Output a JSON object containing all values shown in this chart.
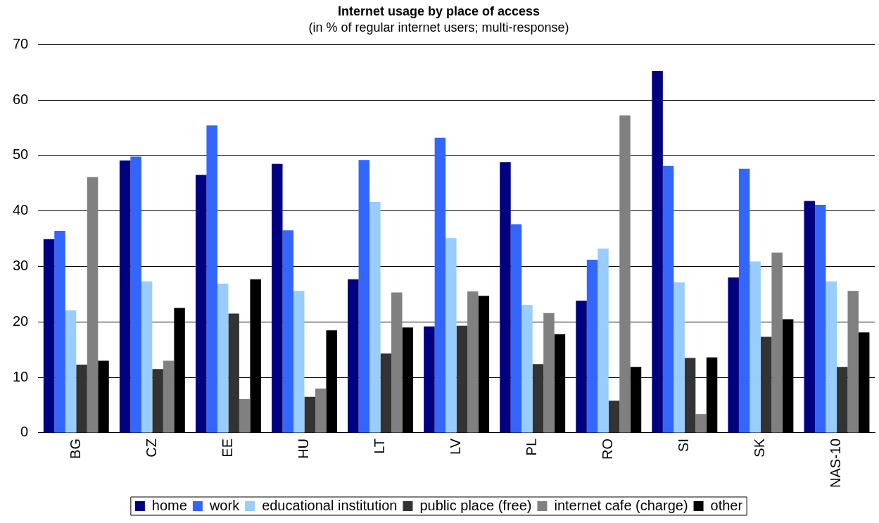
{
  "chart_data": {
    "type": "bar",
    "title": "Internet usage by place of access",
    "subtitle": "(in % of regular internet users; multi-response)",
    "categories": [
      "BG",
      "CZ",
      "EE",
      "HU",
      "LT",
      "LV",
      "PL",
      "RO",
      "SI",
      "SK",
      "NAS-10"
    ],
    "series": [
      {
        "name": "home",
        "color": "#000080",
        "values": [
          34.9,
          49.1,
          46.5,
          48.5,
          27.7,
          19.2,
          48.8,
          23.8,
          65.2,
          28.0,
          41.8
        ]
      },
      {
        "name": "work",
        "color": "#3366ff",
        "values": [
          36.4,
          49.8,
          55.4,
          36.5,
          49.2,
          53.2,
          37.6,
          31.2,
          48.1,
          47.6,
          41.1
        ]
      },
      {
        "name": "educational institution",
        "color": "#99ccff",
        "values": [
          22.1,
          27.3,
          26.9,
          25.6,
          41.6,
          35.1,
          23.1,
          33.2,
          27.1,
          30.9,
          27.3
        ]
      },
      {
        "name": "public place (free)",
        "color": "#333333",
        "values": [
          12.3,
          11.5,
          21.5,
          6.5,
          14.3,
          19.3,
          12.4,
          5.8,
          13.5,
          17.3,
          11.9
        ]
      },
      {
        "name": "internet cafe (charge)",
        "color": "#808080",
        "values": [
          46.1,
          13.0,
          6.1,
          8.0,
          25.3,
          25.5,
          21.6,
          57.2,
          3.4,
          32.5,
          25.6
        ]
      },
      {
        "name": "other",
        "color": "#000000",
        "values": [
          13.0,
          22.5,
          27.7,
          18.5,
          19.0,
          24.7,
          17.8,
          11.9,
          13.6,
          20.5,
          18.1
        ]
      }
    ],
    "ylim": [
      0,
      70
    ],
    "yticks": [
      0,
      10,
      20,
      30,
      40,
      50,
      60,
      70
    ],
    "grid": "y",
    "legend": "bottom"
  }
}
